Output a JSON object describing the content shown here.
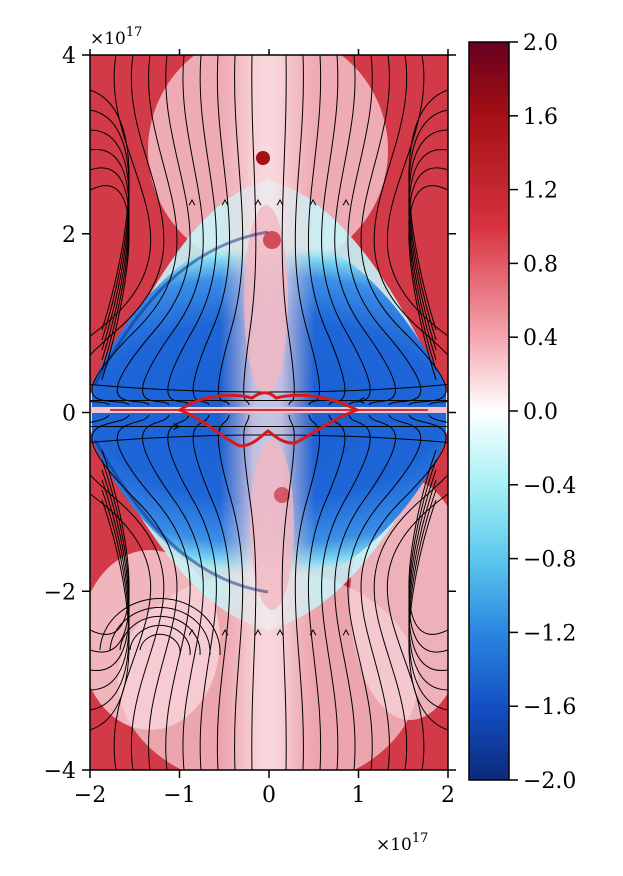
{
  "chart_data": {
    "type": "heatmap",
    "title": "",
    "xlabel": "",
    "ylabel": "",
    "xlim": [
      -2,
      2
    ],
    "ylim": [
      -4,
      4
    ],
    "x_ticks": [
      -2,
      -1,
      0,
      1,
      2
    ],
    "y_ticks": [
      -4,
      -2,
      0,
      2,
      4
    ],
    "x_tick_labels": [
      "−2",
      "−1",
      "0",
      "1",
      "2"
    ],
    "y_tick_labels": [
      "−4",
      "−2",
      "0",
      "2",
      "4"
    ],
    "x_offset_label": "×10",
    "x_offset_exp": "17",
    "y_offset_label": "×10",
    "y_offset_exp": "17",
    "colorbar": {
      "range": [
        -2.0,
        2.0
      ],
      "ticks": [
        2.0,
        1.6,
        1.2,
        0.8,
        0.4,
        0.0,
        -0.4,
        -0.8,
        -1.2,
        -1.6,
        -2.0
      ],
      "tick_labels": [
        "2.0",
        "1.6",
        "1.2",
        "0.8",
        "0.4",
        "0.0",
        "−0.4",
        "−0.8",
        "−1.2",
        "−1.6",
        "−2.0"
      ],
      "colormap": "RdBu_r-like",
      "colors": {
        "max": "#67001f",
        "high": "#c8102e",
        "mid_high": "#f4a6b0",
        "zero": "#ffffff",
        "mid_low": "#7fe7f0",
        "low": "#1c62d6",
        "min": "#0c2a7a"
      }
    },
    "overlays": {
      "streamlines": "black field lines with arrowheads",
      "contour": {
        "color": "#d7191c",
        "description": "closed red contour around equator, x from -1 to 1, y from about -0.35 to 0.2"
      }
    },
    "grid": false
  }
}
